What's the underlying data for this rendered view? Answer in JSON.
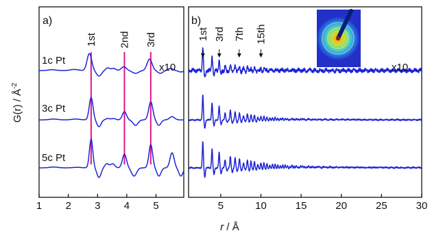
{
  "ylabel": "G(r) / Å",
  "ylabel_sup": "-2",
  "xlabel_italic": "r",
  "xlabel_rest": " / Å",
  "chart_data": [
    {
      "panel": "a)",
      "type": "line",
      "xlim": [
        1,
        5.95
      ],
      "xticks": [
        1,
        2,
        3,
        4,
        5
      ],
      "samples": [
        "1c Pt",
        "3c Pt",
        "5c Pt"
      ],
      "scale_note": "x10",
      "peak_markers": [
        {
          "label": "1st",
          "x": 2.78
        },
        {
          "label": "2nd",
          "x": 3.92
        },
        {
          "label": "3rd",
          "x": 4.82
        }
      ],
      "series": [
        {
          "name": "1c Pt",
          "scaled": "x10",
          "peaks": [
            [
              1.45,
              0.03,
              0.2
            ],
            [
              2.2,
              0.04,
              0.2
            ],
            [
              2.72,
              0.62,
              0.11
            ],
            [
              3.05,
              -0.2,
              0.12
            ],
            [
              3.35,
              0.1,
              0.1
            ],
            [
              3.55,
              0.08,
              0.1
            ],
            [
              3.9,
              0.14,
              0.12
            ],
            [
              4.3,
              -0.1,
              0.15
            ],
            [
              4.78,
              0.42,
              0.12
            ],
            [
              5.15,
              -0.1,
              0.12
            ],
            [
              5.5,
              0.08,
              0.12
            ],
            [
              5.85,
              -0.05,
              0.12
            ]
          ]
        },
        {
          "name": "3c Pt",
          "peaks": [
            [
              1.5,
              0.03,
              0.2
            ],
            [
              2.25,
              0.03,
              0.2
            ],
            [
              2.78,
              0.82,
              0.09
            ],
            [
              3.05,
              -0.25,
              0.1
            ],
            [
              3.35,
              0.05,
              0.1
            ],
            [
              3.55,
              0.05,
              0.1
            ],
            [
              3.92,
              0.3,
              0.1
            ],
            [
              4.3,
              -0.2,
              0.12
            ],
            [
              4.82,
              0.66,
              0.1
            ],
            [
              5.1,
              -0.2,
              0.1
            ],
            [
              5.55,
              0.12,
              0.12
            ]
          ]
        },
        {
          "name": "5c Pt",
          "peaks": [
            [
              1.5,
              0.03,
              0.2
            ],
            [
              2.3,
              0.02,
              0.2
            ],
            [
              2.78,
              1.05,
              0.08
            ],
            [
              3.05,
              -0.35,
              0.1
            ],
            [
              3.32,
              0.15,
              0.1
            ],
            [
              3.52,
              0.15,
              0.1
            ],
            [
              3.92,
              0.5,
              0.1
            ],
            [
              4.25,
              -0.3,
              0.12
            ],
            [
              4.82,
              0.85,
              0.09
            ],
            [
              5.1,
              -0.3,
              0.1
            ],
            [
              5.55,
              0.55,
              0.1
            ],
            [
              5.85,
              -0.3,
              0.1
            ]
          ]
        }
      ]
    },
    {
      "panel": "b)",
      "type": "line",
      "xlim": [
        1,
        30
      ],
      "xticks": [
        5,
        10,
        15,
        20,
        25,
        30
      ],
      "scale_note": "x10",
      "shell_labels": [
        {
          "label": "1st",
          "x": 2.78
        },
        {
          "label": "3rd",
          "x": 4.82
        },
        {
          "label": "7th",
          "x": 7.3
        },
        {
          "label": "15th",
          "x": 10.0
        }
      ],
      "series": [
        {
          "name": "1c Pt",
          "scaled": "x10",
          "peak_amp": 0.9,
          "decay_len": 4.0,
          "noise_amp": 0.06
        },
        {
          "name": "3c Pt",
          "peak_amp": 0.95,
          "decay_len": 6.0,
          "noise_amp": 0.02
        },
        {
          "name": "5c Pt",
          "peak_amp": 1.0,
          "decay_len": 8.0,
          "noise_amp": 0.02
        }
      ]
    }
  ],
  "colors": {
    "curve": "#1c22d6",
    "marker": "#e0148c",
    "axis": "#111111"
  },
  "inset": {
    "icon": "diffraction-ring-pattern-icon"
  }
}
